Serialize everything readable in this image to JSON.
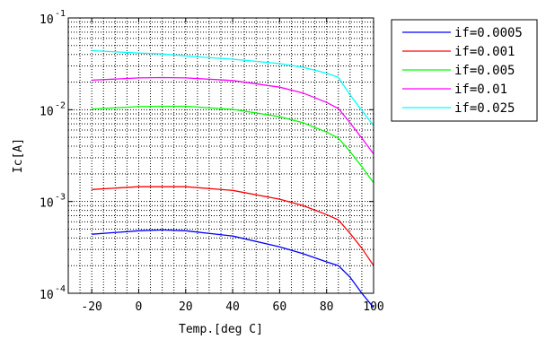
{
  "chart_data": {
    "type": "line",
    "xlabel": "Temp.[deg C]",
    "ylabel": "Ic[A]",
    "xlim": [
      -30,
      100
    ],
    "ylim": [
      0.0001,
      0.1
    ],
    "yscale": "log",
    "grid": true,
    "legend_position": "outside-right",
    "x_ticks": [
      "-20",
      "0",
      "20",
      "40",
      "60",
      "80",
      "100"
    ],
    "x_tick_values": [
      -20,
      0,
      20,
      40,
      60,
      80,
      100
    ],
    "y_ticks": [
      {
        "value": 0.1,
        "base": "10",
        "exp": "-1"
      },
      {
        "value": 0.01,
        "base": "10",
        "exp": "-2"
      },
      {
        "value": 0.001,
        "base": "10",
        "exp": "-3"
      },
      {
        "value": 0.0001,
        "base": "10",
        "exp": "-4"
      }
    ],
    "x": [
      -20,
      0,
      10,
      20,
      40,
      60,
      70,
      80,
      85,
      90,
      95,
      100
    ],
    "series": [
      {
        "name": "if=0.0005",
        "color": "#0000ff",
        "values": [
          0.00044,
          0.00048,
          0.00049,
          0.00048,
          0.00042,
          0.00032,
          0.00027,
          0.00022,
          0.0002,
          0.00015,
          0.0001,
          7e-05
        ]
      },
      {
        "name": "if=0.001",
        "color": "#ff0000",
        "values": [
          0.00135,
          0.00145,
          0.00145,
          0.00145,
          0.00132,
          0.00106,
          0.0009,
          0.00072,
          0.00063,
          0.00045,
          0.00031,
          0.0002
        ]
      },
      {
        "name": "if=0.005",
        "color": "#00ff00",
        "values": [
          0.0102,
          0.0108,
          0.0109,
          0.0109,
          0.0101,
          0.0084,
          0.0072,
          0.0057,
          0.0049,
          0.0035,
          0.0024,
          0.0016
        ]
      },
      {
        "name": "if=0.01",
        "color": "#ff00ff",
        "values": [
          0.021,
          0.0222,
          0.0224,
          0.0222,
          0.0208,
          0.0176,
          0.0152,
          0.012,
          0.0103,
          0.0072,
          0.0049,
          0.0033
        ]
      },
      {
        "name": "if=0.025",
        "color": "#00ffff",
        "values": [
          0.044,
          0.0415,
          0.0405,
          0.0385,
          0.0355,
          0.0318,
          0.029,
          0.025,
          0.0225,
          0.0145,
          0.0098,
          0.0067
        ]
      }
    ]
  }
}
